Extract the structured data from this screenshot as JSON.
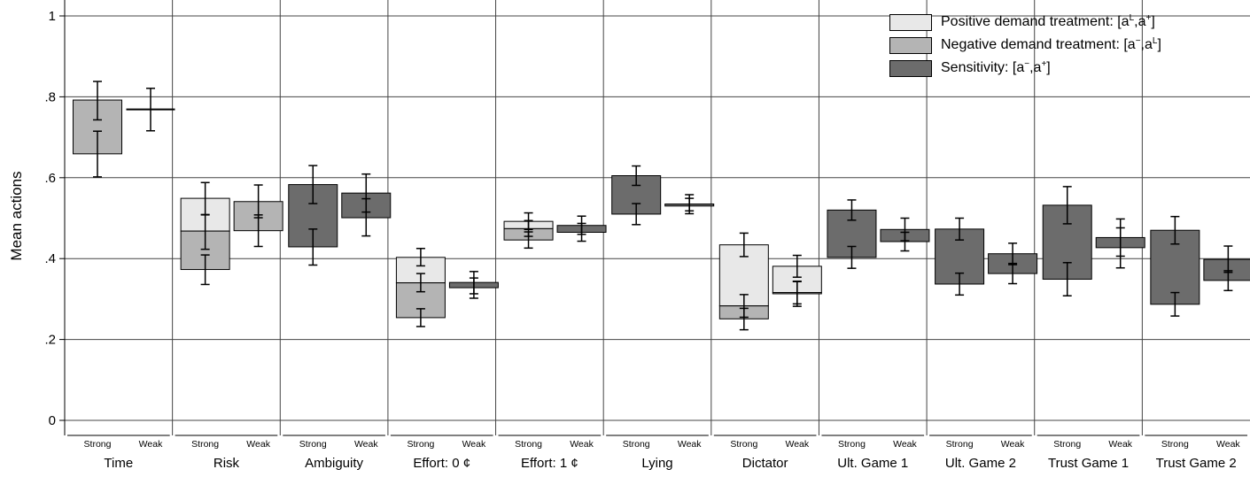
{
  "chart_data": {
    "type": "bar",
    "ylabel": "Mean actions",
    "ylim": [
      0,
      1
    ],
    "yticks": [
      {
        "v": 0,
        "label": "0"
      },
      {
        "v": 0.2,
        "label": ".2"
      },
      {
        "v": 0.4,
        "label": ".4"
      },
      {
        "v": 0.6,
        "label": ".6"
      },
      {
        "v": 0.8,
        "label": ".8"
      },
      {
        "v": 1,
        "label": "1"
      }
    ],
    "grid": true,
    "legend_position": "top-right",
    "colors": {
      "positive": "#e8e8e8",
      "negative": "#b4b4b4",
      "sensitivity": "#6c6c6c"
    },
    "legend": [
      {
        "key": "positive",
        "text": "Positive demand treatment: [a",
        "sup1": "L",
        "mid": ",a",
        "sup2": "+",
        "end": "]"
      },
      {
        "key": "negative",
        "text": "Negative demand treatment: [a",
        "sup1": "−",
        "mid": ",a",
        "sup2": "L",
        "end": "]"
      },
      {
        "key": "sensitivity",
        "text": "Sensitivity: [a",
        "sup1": "−",
        "mid": ",a",
        "sup2": "+",
        "end": "]"
      }
    ],
    "conditions": [
      "Strong",
      "Weak"
    ],
    "categories": [
      "Time",
      "Risk",
      "Ambiguity",
      "Effort: 0 ¢",
      "Effort: 1 ¢",
      "Lying",
      "Dictator",
      "Ult. Game 1",
      "Ult. Game 2",
      "Trust Game 1",
      "Trust Game 2"
    ],
    "groups": [
      {
        "category": "Time",
        "bars": [
          {
            "condition": "Strong",
            "type": "negative",
            "low": 0.659,
            "high": 0.792,
            "mid": null,
            "ci": [
              [
                0.602,
                0.715
              ],
              [
                0.743,
                0.838
              ]
            ]
          },
          {
            "condition": "Weak",
            "type": "negative",
            "low": 0.769,
            "high": 0.769,
            "mid": null,
            "ci": [
              [
                0.716,
                0.821
              ]
            ]
          }
        ]
      },
      {
        "category": "Risk",
        "bars": [
          {
            "condition": "Strong",
            "type": "split",
            "low": 0.373,
            "high": 0.549,
            "mid": 0.468,
            "ci": [
              [
                0.336,
                0.409
              ],
              [
                0.423,
                0.508
              ],
              [
                0.509,
                0.588
              ]
            ]
          },
          {
            "condition": "Weak",
            "type": "negative",
            "low": 0.469,
            "high": 0.541,
            "mid": null,
            "ci": [
              [
                0.43,
                0.508
              ],
              [
                0.501,
                0.582
              ]
            ]
          }
        ]
      },
      {
        "category": "Ambiguity",
        "bars": [
          {
            "condition": "Strong",
            "type": "sensitivity",
            "low": 0.429,
            "high": 0.583,
            "mid": null,
            "ci": [
              [
                0.384,
                0.473
              ],
              [
                0.536,
                0.63
              ]
            ]
          },
          {
            "condition": "Weak",
            "type": "sensitivity",
            "low": 0.501,
            "high": 0.562,
            "mid": null,
            "ci": [
              [
                0.456,
                0.548
              ],
              [
                0.515,
                0.609
              ]
            ]
          }
        ]
      },
      {
        "category": "Effort: 0 ¢",
        "bars": [
          {
            "condition": "Strong",
            "type": "split",
            "low": 0.254,
            "high": 0.403,
            "mid": 0.34,
            "ci": [
              [
                0.232,
                0.276
              ],
              [
                0.318,
                0.363
              ],
              [
                0.382,
                0.425
              ]
            ]
          },
          {
            "condition": "Weak",
            "type": "sensitivity",
            "low": 0.328,
            "high": 0.341,
            "mid": null,
            "ci": [
              [
                0.302,
                0.352
              ],
              [
                0.313,
                0.368
              ]
            ]
          }
        ]
      },
      {
        "category": "Effort: 1 ¢",
        "bars": [
          {
            "condition": "Strong",
            "type": "split",
            "low": 0.446,
            "high": 0.492,
            "mid": 0.474,
            "ci": [
              [
                0.426,
                0.466
              ],
              [
                0.455,
                0.494
              ],
              [
                0.472,
                0.513
              ]
            ]
          },
          {
            "condition": "Weak",
            "type": "sensitivity",
            "low": 0.465,
            "high": 0.482,
            "mid": null,
            "ci": [
              [
                0.443,
                0.487
              ],
              [
                0.46,
                0.505
              ]
            ]
          }
        ]
      },
      {
        "category": "Lying",
        "bars": [
          {
            "condition": "Strong",
            "type": "sensitivity",
            "low": 0.51,
            "high": 0.605,
            "mid": null,
            "ci": [
              [
                0.484,
                0.536
              ],
              [
                0.581,
                0.629
              ]
            ]
          },
          {
            "condition": "Weak",
            "type": "sensitivity",
            "low": 0.53,
            "high": 0.535,
            "mid": null,
            "ci": [
              [
                0.511,
                0.549
              ],
              [
                0.518,
                0.558
              ]
            ]
          }
        ]
      },
      {
        "category": "Dictator",
        "bars": [
          {
            "condition": "Strong",
            "type": "split",
            "low": 0.251,
            "high": 0.434,
            "mid": 0.283,
            "ci": [
              [
                0.224,
                0.277
              ],
              [
                0.255,
                0.311
              ],
              [
                0.405,
                0.463
              ]
            ]
          },
          {
            "condition": "Weak",
            "type": "split",
            "low": 0.313,
            "high": 0.381,
            "mid": 0.316,
            "ci": [
              [
                0.282,
                0.344
              ],
              [
                0.288,
                0.343
              ],
              [
                0.354,
                0.408
              ]
            ]
          }
        ]
      },
      {
        "category": "Ult. Game 1",
        "bars": [
          {
            "condition": "Strong",
            "type": "sensitivity",
            "low": 0.403,
            "high": 0.52,
            "mid": null,
            "ci": [
              [
                0.376,
                0.43
              ],
              [
                0.495,
                0.545
              ]
            ]
          },
          {
            "condition": "Weak",
            "type": "sensitivity",
            "low": 0.442,
            "high": 0.472,
            "mid": null,
            "ci": [
              [
                0.419,
                0.465
              ],
              [
                0.444,
                0.5
              ]
            ]
          }
        ]
      },
      {
        "category": "Ult. Game 2",
        "bars": [
          {
            "condition": "Strong",
            "type": "sensitivity",
            "low": 0.337,
            "high": 0.473,
            "mid": null,
            "ci": [
              [
                0.31,
                0.364
              ],
              [
                0.446,
                0.5
              ]
            ]
          },
          {
            "condition": "Weak",
            "type": "sensitivity",
            "low": 0.363,
            "high": 0.412,
            "mid": null,
            "ci": [
              [
                0.338,
                0.388
              ],
              [
                0.385,
                0.438
              ]
            ]
          }
        ]
      },
      {
        "category": "Trust Game 1",
        "bars": [
          {
            "condition": "Strong",
            "type": "sensitivity",
            "low": 0.349,
            "high": 0.532,
            "mid": null,
            "ci": [
              [
                0.308,
                0.39
              ],
              [
                0.486,
                0.578
              ]
            ]
          },
          {
            "condition": "Weak",
            "type": "sensitivity",
            "low": 0.427,
            "high": 0.452,
            "mid": null,
            "ci": [
              [
                0.377,
                0.476
              ],
              [
                0.406,
                0.498
              ]
            ]
          }
        ]
      },
      {
        "category": "Trust Game 2",
        "bars": [
          {
            "condition": "Strong",
            "type": "sensitivity",
            "low": 0.287,
            "high": 0.47,
            "mid": null,
            "ci": [
              [
                0.258,
                0.316
              ],
              [
                0.436,
                0.504
              ]
            ]
          },
          {
            "condition": "Weak",
            "type": "sensitivity",
            "low": 0.346,
            "high": 0.398,
            "mid": null,
            "ci": [
              [
                0.321,
                0.37
              ],
              [
                0.366,
                0.431
              ]
            ]
          }
        ]
      }
    ]
  }
}
